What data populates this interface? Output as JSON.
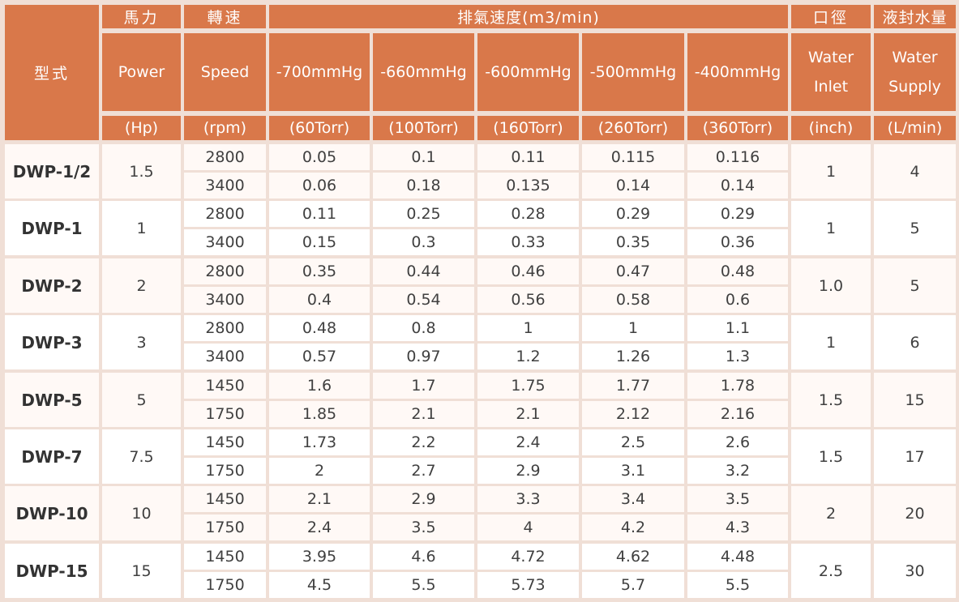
{
  "header": {
    "model_label": "型式",
    "power": {
      "zh": "馬力",
      "en": "Power",
      "unit": "(Hp)"
    },
    "speed": {
      "zh": "轉速",
      "en": "Speed",
      "unit": "(rpm)"
    },
    "exhaust": {
      "zh": "排氣速度(m3/min)",
      "columns": [
        {
          "vac": "-700mmHg",
          "torr": "(60Torr)"
        },
        {
          "vac": "-660mmHg",
          "torr": "(100Torr)"
        },
        {
          "vac": "-600mmHg",
          "torr": "(160Torr)"
        },
        {
          "vac": "-500mmHg",
          "torr": "(260Torr)"
        },
        {
          "vac": "-400mmHg",
          "torr": "(360Torr)"
        }
      ]
    },
    "inlet": {
      "zh": "口徑",
      "en_line1": "Water",
      "en_line2": "Inlet",
      "unit": "(inch)"
    },
    "supply": {
      "zh": "液封水量",
      "en_line1": "Water",
      "en_line2": "Supply",
      "unit": "(L/min)"
    }
  },
  "rows": [
    {
      "model": "DWP-1/2",
      "power": "1.5",
      "inlet": "1",
      "supply": "4",
      "speeds": [
        {
          "rpm": "2800",
          "values": [
            "0.05",
            "0.1",
            "0.11",
            "0.115",
            "0.116"
          ]
        },
        {
          "rpm": "3400",
          "values": [
            "0.06",
            "0.18",
            "0.135",
            "0.14",
            "0.14"
          ]
        }
      ]
    },
    {
      "model": "DWP-1",
      "power": "1",
      "inlet": "1",
      "supply": "5",
      "speeds": [
        {
          "rpm": "2800",
          "values": [
            "0.11",
            "0.25",
            "0.28",
            "0.29",
            "0.29"
          ]
        },
        {
          "rpm": "3400",
          "values": [
            "0.15",
            "0.3",
            "0.33",
            "0.35",
            "0.36"
          ]
        }
      ]
    },
    {
      "model": "DWP-2",
      "power": "2",
      "inlet": "1.0",
      "supply": "5",
      "speeds": [
        {
          "rpm": "2800",
          "values": [
            "0.35",
            "0.44",
            "0.46",
            "0.47",
            "0.48"
          ]
        },
        {
          "rpm": "3400",
          "values": [
            "0.4",
            "0.54",
            "0.56",
            "0.58",
            "0.6"
          ]
        }
      ]
    },
    {
      "model": "DWP-3",
      "power": "3",
      "inlet": "1",
      "supply": "6",
      "speeds": [
        {
          "rpm": "2800",
          "values": [
            "0.48",
            "0.8",
            "1",
            "1",
            "1.1"
          ]
        },
        {
          "rpm": "3400",
          "values": [
            "0.57",
            "0.97",
            "1.2",
            "1.26",
            "1.3"
          ]
        }
      ]
    },
    {
      "model": "DWP-5",
      "power": "5",
      "inlet": "1.5",
      "supply": "15",
      "speeds": [
        {
          "rpm": "1450",
          "values": [
            "1.6",
            "1.7",
            "1.75",
            "1.77",
            "1.78"
          ]
        },
        {
          "rpm": "1750",
          "values": [
            "1.85",
            "2.1",
            "2.1",
            "2.12",
            "2.16"
          ]
        }
      ]
    },
    {
      "model": "DWP-7",
      "power": "7.5",
      "inlet": "1.5",
      "supply": "17",
      "speeds": [
        {
          "rpm": "1450",
          "values": [
            "1.73",
            "2.2",
            "2.4",
            "2.5",
            "2.6"
          ]
        },
        {
          "rpm": "1750",
          "values": [
            "2",
            "2.7",
            "2.9",
            "3.1",
            "3.2"
          ]
        }
      ]
    },
    {
      "model": "DWP-10",
      "power": "10",
      "inlet": "2",
      "supply": "20",
      "speeds": [
        {
          "rpm": "1450",
          "values": [
            "2.1",
            "2.9",
            "3.3",
            "3.4",
            "3.5"
          ]
        },
        {
          "rpm": "1750",
          "values": [
            "2.4",
            "3.5",
            "4",
            "4.2",
            "4.3"
          ]
        }
      ]
    },
    {
      "model": "DWP-15",
      "power": "15",
      "inlet": "2.5",
      "supply": "30",
      "speeds": [
        {
          "rpm": "1450",
          "values": [
            "3.95",
            "4.6",
            "4.72",
            "4.62",
            "4.48"
          ]
        },
        {
          "rpm": "1750",
          "values": [
            "4.5",
            "5.5",
            "5.73",
            "5.7",
            "5.5"
          ]
        }
      ]
    }
  ]
}
